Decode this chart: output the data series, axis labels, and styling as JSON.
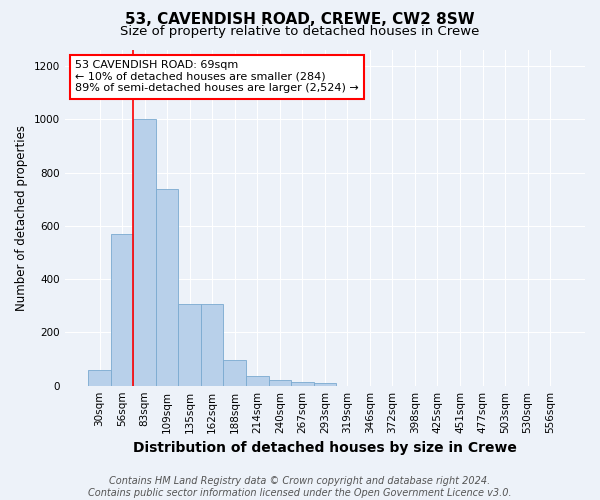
{
  "title1": "53, CAVENDISH ROAD, CREWE, CW2 8SW",
  "title2": "Size of property relative to detached houses in Crewe",
  "xlabel": "Distribution of detached houses by size in Crewe",
  "ylabel": "Number of detached properties",
  "categories": [
    "30sqm",
    "56sqm",
    "83sqm",
    "109sqm",
    "135sqm",
    "162sqm",
    "188sqm",
    "214sqm",
    "240sqm",
    "267sqm",
    "293sqm",
    "319sqm",
    "346sqm",
    "372sqm",
    "398sqm",
    "425sqm",
    "451sqm",
    "477sqm",
    "503sqm",
    "530sqm",
    "556sqm"
  ],
  "values": [
    57,
    570,
    1000,
    740,
    305,
    305,
    95,
    35,
    20,
    15,
    10,
    0,
    0,
    0,
    0,
    0,
    0,
    0,
    0,
    0,
    0
  ],
  "bar_color": "#b8d0ea",
  "bar_edge_color": "#7aaad0",
  "annotation_box_text": "53 CAVENDISH ROAD: 69sqm\n← 10% of detached houses are smaller (284)\n89% of semi-detached houses are larger (2,524) →",
  "annotation_box_color": "white",
  "annotation_box_edge_color": "red",
  "red_line_x": 1.48,
  "footer": "Contains HM Land Registry data © Crown copyright and database right 2024.\nContains public sector information licensed under the Open Government Licence v3.0.",
  "ylim": [
    0,
    1260
  ],
  "background_color": "#edf2f9",
  "grid_color": "white",
  "title1_fontsize": 11,
  "title2_fontsize": 9.5,
  "xlabel_fontsize": 10,
  "ylabel_fontsize": 8.5,
  "tick_fontsize": 7.5,
  "footer_fontsize": 7.0,
  "annotation_fontsize": 8.0
}
